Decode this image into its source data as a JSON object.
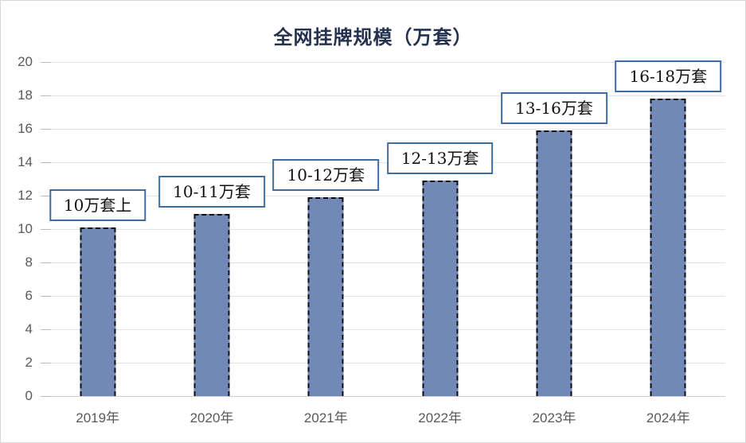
{
  "chart_data": {
    "type": "bar",
    "title": "全网挂牌规模（万套）",
    "categories": [
      "2019年",
      "2020年",
      "2021年",
      "2022年",
      "2023年",
      "2024年"
    ],
    "values": [
      10.1,
      10.9,
      11.9,
      12.9,
      15.9,
      17.8
    ],
    "bar_labels": [
      "10万套上",
      "10-11万套",
      "10-12万套",
      "12-13万套",
      "13-16万套",
      "16-18万套"
    ],
    "yticks": [
      0,
      2,
      4,
      6,
      8,
      10,
      12,
      14,
      16,
      18,
      20
    ],
    "ylim": [
      0,
      20
    ],
    "xlabel": "",
    "ylabel": "",
    "grid": "horizontal",
    "legend_position": "none",
    "colors": {
      "bar_fill": "#7289b7",
      "bar_border": "#0d0d0d",
      "callout_border": "#3f6ca0",
      "callout_text": "#111111",
      "gridline": "#e3e3e3",
      "axis_text": "#595959",
      "title_text": "#24324e",
      "background": "#ffffff"
    }
  }
}
